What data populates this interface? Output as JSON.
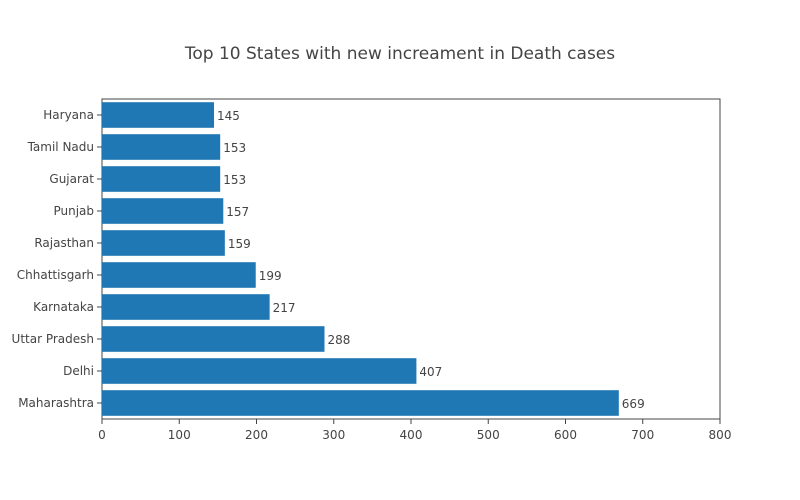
{
  "chart_data": {
    "type": "bar",
    "orientation": "horizontal",
    "title": "Top 10 States with new increament in Death cases",
    "xlabel": "",
    "ylabel": "",
    "categories": [
      "Maharashtra",
      "Delhi",
      "Uttar Pradesh",
      "Karnataka",
      "Chhattisgarh",
      "Rajasthan",
      "Punjab",
      "Gujarat",
      "Tamil Nadu",
      "Haryana"
    ],
    "values": [
      669,
      407,
      288,
      217,
      199,
      159,
      157,
      153,
      153,
      145
    ],
    "data_labels": [
      "669",
      "407",
      "288",
      "217",
      "199",
      "159",
      "157",
      "153",
      "153",
      "145"
    ],
    "xlim": [
      0,
      800
    ],
    "x_ticks": [
      0,
      100,
      200,
      300,
      400,
      500,
      600,
      700,
      800
    ],
    "grid": false,
    "legend": "none",
    "bar_color": "#1f77b4"
  }
}
